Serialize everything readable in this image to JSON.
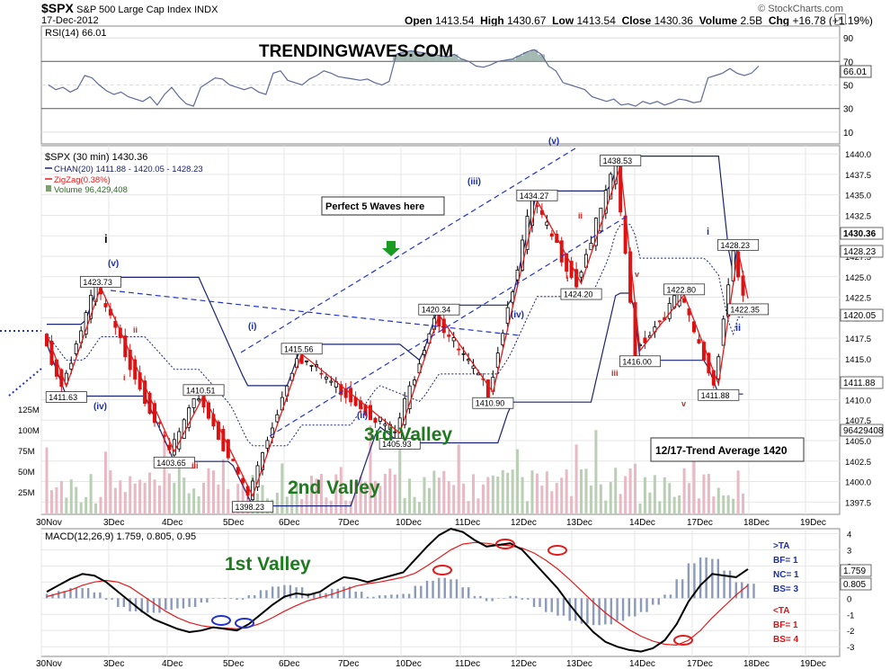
{
  "header": {
    "ticker": "$SPX",
    "name": "S&P 500 Large Cap Index",
    "exchange": "INDX",
    "date": "17-Dec-2012",
    "credit": "© StockCharts.com",
    "open_label": "Open",
    "open": "1413.54",
    "high_label": "High",
    "high": "1430.67",
    "low_label": "Low",
    "low": "1413.54",
    "close_label": "Close",
    "close": "1430.36",
    "volume_label": "Volume",
    "volume": "2.5B",
    "chg_label": "Chg",
    "chg": "+16.78 (+1.19%)"
  },
  "watermark": "TRENDINGWAVES.COM",
  "chart_data": [
    {
      "type": "line",
      "panel": "RSI",
      "title": "RSI(14) 66.01",
      "ylim": [
        0,
        100
      ],
      "ticks": [
        10,
        30,
        50,
        70,
        90
      ],
      "last_label": "66.01",
      "x": [
        0,
        1,
        2,
        3,
        4,
        5,
        6,
        7,
        8,
        9,
        10,
        11,
        12,
        13,
        14,
        15,
        16,
        17,
        18,
        19,
        20,
        21,
        22,
        23,
        24,
        25,
        26,
        27,
        28,
        29,
        30,
        31,
        32,
        33,
        34,
        35,
        36,
        37,
        38,
        39,
        40,
        41,
        42,
        43,
        44,
        45,
        46,
        47,
        48,
        49,
        50,
        51,
        52,
        53,
        54,
        55,
        56,
        57,
        58,
        59,
        60,
        61,
        62,
        63,
        64,
        65,
        66,
        67,
        68,
        69,
        70,
        71,
        72,
        73,
        74,
        75,
        76,
        77,
        78,
        79,
        80,
        81,
        82,
        83,
        84,
        85,
        86,
        87,
        88,
        89,
        90,
        91,
        92,
        93,
        94,
        95,
        96,
        97,
        98
      ],
      "values": [
        50,
        46,
        48,
        44,
        47,
        58,
        56,
        50,
        45,
        42,
        44,
        40,
        38,
        36,
        40,
        33,
        42,
        48,
        40,
        34,
        32,
        48,
        52,
        56,
        55,
        50,
        48,
        46,
        48,
        44,
        42,
        60,
        62,
        54,
        52,
        50,
        55,
        58,
        62,
        60,
        57,
        56,
        55,
        54,
        55,
        52,
        50,
        53,
        76,
        78,
        79,
        78,
        77,
        76,
        75,
        74,
        76,
        72,
        70,
        66,
        65,
        67,
        70,
        71,
        72,
        75,
        78,
        80,
        76,
        66,
        62,
        52,
        50,
        48,
        46,
        40,
        38,
        36,
        38,
        33,
        34,
        32,
        36,
        34,
        36,
        33,
        35,
        38,
        37,
        35,
        36,
        56,
        58,
        60,
        64,
        60,
        58,
        60,
        66
      ]
    },
    {
      "type": "line",
      "panel": "price",
      "title": "$SPX (30 min) 1430.36",
      "legend": [
        "CHAN(20) 1411.88 - 1420.05 - 1428.23",
        "ZigZag(0.38%)",
        "Volume 96,429,408"
      ],
      "ylim": [
        1396,
        1441
      ],
      "y_ticks": [
        1397.5,
        1400,
        1402.5,
        1405,
        1407.5,
        1410,
        1412.5,
        1415,
        1417.5,
        1420,
        1422.5,
        1425,
        1427.5,
        1430,
        1432.5,
        1435,
        1437.5,
        1440
      ],
      "right_labels": [
        "1430.36",
        "1428.23",
        "1420.05",
        "1411.88",
        "96429408"
      ],
      "volume_ticks": [
        "125M",
        "100M",
        "75M",
        "50M",
        "25M"
      ],
      "x_ticks": [
        "30Nov",
        "3Dec",
        "4Dec",
        "5Dec",
        "6Dec",
        "7Dec",
        "10Dec",
        "11Dec",
        "12Dec",
        "13Dec",
        "14Dec",
        "17Dec",
        "18Dec",
        "19Dec"
      ],
      "zigzag_x": [
        0,
        4,
        11,
        26,
        32,
        42,
        52,
        72,
        80,
        91,
        100,
        109,
        117,
        121,
        130,
        137,
        141,
        143
      ],
      "zigzag_y": [
        1418,
        1411.63,
        1423.73,
        1403.65,
        1410.51,
        1398.23,
        1415.56,
        1405.93,
        1420.34,
        1410.9,
        1434.27,
        1424.2,
        1438.53,
        1416.0,
        1422.8,
        1411.88,
        1428.23,
        1422.35
      ],
      "labels": [
        "1423.73",
        "1411.63",
        "1403.65",
        "1410.51",
        "1398.23",
        "1415.56",
        "1405.93",
        "1420.34",
        "1410.90",
        "1434.27",
        "1424.20",
        "1438.53",
        "1416.00",
        "1422.80",
        "1411.88",
        "1428.23",
        "1422.35"
      ],
      "wave_labels": [
        "i",
        "(v)",
        "(iv)",
        "ii",
        "i",
        "iii",
        "(i)",
        "(ii)",
        "(iii)",
        "(iv)",
        "(v)",
        "i",
        "ii",
        "iii",
        "i v",
        "v",
        "i",
        "ii"
      ],
      "annotations": [
        "Perfect 5 Waves here",
        "3rd Valley",
        "2nd Valley",
        "12/17-Trend Average 1420"
      ]
    },
    {
      "type": "line",
      "panel": "MACD",
      "title": "MACD(12,26,9) 1.759, 0.805, 0.95",
      "ylim": [
        -3.6,
        4.3
      ],
      "y_ticks": [
        -3,
        -2,
        -1,
        0,
        1,
        2,
        3,
        4
      ],
      "right_labels": [
        "1.759",
        "0.805"
      ],
      "x_ticks": [
        "30Nov",
        "3Dec",
        "4Dec",
        "5Dec",
        "6Dec",
        "7Dec",
        "10Dec",
        "11Dec",
        "12Dec",
        "13Dec",
        "14Dec",
        "17Dec",
        "18Dec",
        "19Dec"
      ],
      "macd": [
        0.4,
        0.8,
        1.2,
        1.5,
        1.4,
        1.0,
        0.4,
        -0.2,
        -0.8,
        -1.3,
        -1.6,
        -1.9,
        -2.1,
        -2.0,
        -1.8,
        -1.9,
        -2.0,
        -1.6,
        -1.0,
        -0.4,
        0.1,
        0.3,
        0.2,
        0.4,
        0.9,
        1.3,
        1.2,
        1.0,
        1.2,
        1.4,
        1.6,
        2.4,
        3.2,
        3.9,
        4.3,
        4.1,
        3.6,
        3.2,
        3.3,
        3.4,
        3.0,
        2.2,
        1.4,
        0.6,
        -0.4,
        -1.3,
        -2.1,
        -2.7,
        -3.0,
        -3.2,
        -3.3,
        -3.1,
        -2.6,
        -1.6,
        -0.2,
        0.8,
        1.5,
        1.4,
        1.3,
        1.8
      ],
      "signal": [
        0.1,
        0.3,
        0.5,
        0.8,
        1.0,
        1.1,
        1.0,
        0.7,
        0.2,
        -0.3,
        -0.8,
        -1.2,
        -1.5,
        -1.7,
        -1.8,
        -1.85,
        -1.9,
        -1.8,
        -1.55,
        -1.2,
        -0.8,
        -0.45,
        -0.15,
        0.05,
        0.25,
        0.5,
        0.75,
        0.9,
        1.0,
        1.15,
        1.3,
        1.55,
        2.0,
        2.5,
        3.0,
        3.35,
        3.45,
        3.4,
        3.3,
        3.25,
        3.1,
        2.8,
        2.35,
        1.8,
        1.15,
        0.45,
        -0.25,
        -0.9,
        -1.45,
        -1.95,
        -2.35,
        -2.65,
        -2.85,
        -2.9,
        -2.6,
        -2.0,
        -1.2,
        -0.5,
        0.2,
        0.8
      ],
      "ta_legend": [
        ">TA",
        "BF= 1",
        "NC= 1",
        "BS= 3",
        "<TA",
        "BF= 1",
        "BS= 4"
      ],
      "annotation": "1st Valley"
    }
  ]
}
